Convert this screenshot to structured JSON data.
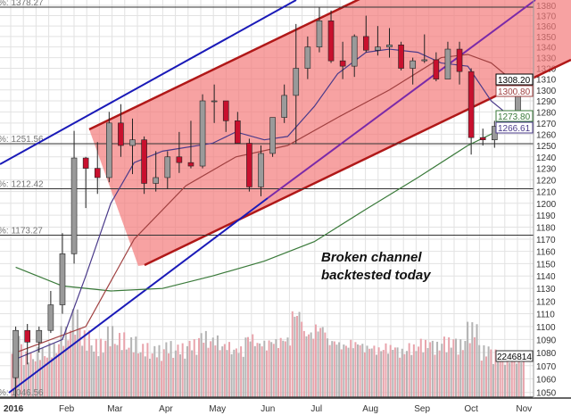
{
  "chart_data": {
    "type": "candlestick",
    "y_scale": "log",
    "ylim": [
      1046,
      1382
    ],
    "grid": true,
    "y_ticks": [
      1050,
      1060,
      1070,
      1080,
      1090,
      1100,
      1110,
      1120,
      1130,
      1140,
      1150,
      1160,
      1170,
      1180,
      1190,
      1200,
      1210,
      1220,
      1230,
      1240,
      1250,
      1260,
      1270,
      1280,
      1290,
      1300,
      1310,
      1320,
      1330,
      1340,
      1350,
      1360,
      1370,
      1380
    ],
    "x_ticks": [
      {
        "date": "2016-01-01",
        "label": "2016"
      },
      {
        "date": "2016-02-01",
        "label": "Feb"
      },
      {
        "date": "2016-03-01",
        "label": "Mar"
      },
      {
        "date": "2016-04-01",
        "label": "Apr"
      },
      {
        "date": "2016-05-01",
        "label": "May"
      },
      {
        "date": "2016-06-01",
        "label": "Jun"
      },
      {
        "date": "2016-07-01",
        "label": "Jul"
      },
      {
        "date": "2016-08-01",
        "label": "Aug"
      },
      {
        "date": "2016-09-01",
        "label": "Sep"
      },
      {
        "date": "2016-10-01",
        "label": "Oct"
      },
      {
        "date": "2016-11-01",
        "label": "Nov"
      }
    ],
    "colors": {
      "down": "#c8102e",
      "up": "#9a9a9a",
      "vol_down": "#e8a4ac",
      "vol_up": "#b4b4b4",
      "channel_fill": "#f47a7a",
      "channel_line": "#b01818",
      "trend": "#1a1ab8",
      "trend2": "#7a2aa8",
      "ma_200": "#3a7a3a",
      "ma_50": "#4a3a8a",
      "ma_100": "#a04040"
    },
    "ohlc": [
      [
        "2016-01-04",
        1061,
        1100,
        1046,
        1097
      ],
      [
        "2016-01-11",
        1097,
        1102,
        1071,
        1088
      ],
      [
        "2016-01-18",
        1088,
        1100,
        1080,
        1097
      ],
      [
        "2016-01-25",
        1097,
        1128,
        1095,
        1117
      ],
      [
        "2016-02-01",
        1117,
        1175,
        1110,
        1158
      ],
      [
        "2016-02-08",
        1158,
        1263,
        1150,
        1239
      ],
      [
        "2016-02-15",
        1239,
        1240,
        1196,
        1230
      ],
      [
        "2016-02-22",
        1230,
        1253,
        1208,
        1222
      ],
      [
        "2016-02-29",
        1222,
        1280,
        1218,
        1270
      ],
      [
        "2016-03-07",
        1270,
        1287,
        1240,
        1250
      ],
      [
        "2016-03-14",
        1250,
        1274,
        1225,
        1255
      ],
      [
        "2016-03-21",
        1255,
        1258,
        1208,
        1217
      ],
      [
        "2016-03-28",
        1217,
        1245,
        1210,
        1222
      ],
      [
        "2016-04-04",
        1222,
        1245,
        1212,
        1240
      ],
      [
        "2016-04-11",
        1240,
        1262,
        1226,
        1235
      ],
      [
        "2016-04-18",
        1235,
        1272,
        1230,
        1232
      ],
      [
        "2016-04-25",
        1232,
        1296,
        1230,
        1290
      ],
      [
        "2016-05-02",
        1290,
        1305,
        1270,
        1290
      ],
      [
        "2016-05-09",
        1290,
        1290,
        1262,
        1272
      ],
      [
        "2016-05-16",
        1272,
        1280,
        1252,
        1252
      ],
      [
        "2016-05-23",
        1252,
        1256,
        1210,
        1214
      ],
      [
        "2016-05-30",
        1214,
        1250,
        1206,
        1243
      ],
      [
        "2016-06-06",
        1243,
        1275,
        1240,
        1275
      ],
      [
        "2016-06-13",
        1275,
        1305,
        1270,
        1295
      ],
      [
        "2016-06-20",
        1295,
        1362,
        1252,
        1320
      ],
      [
        "2016-06-27",
        1320,
        1350,
        1310,
        1340
      ],
      [
        "2016-07-04",
        1340,
        1378,
        1335,
        1365
      ],
      [
        "2016-07-11",
        1365,
        1375,
        1325,
        1327
      ],
      [
        "2016-07-18",
        1327,
        1345,
        1310,
        1322
      ],
      [
        "2016-07-25",
        1322,
        1352,
        1312,
        1350
      ],
      [
        "2016-08-01",
        1350,
        1370,
        1335,
        1337
      ],
      [
        "2016-08-08",
        1337,
        1360,
        1332,
        1340
      ],
      [
        "2016-08-15",
        1340,
        1358,
        1330,
        1342
      ],
      [
        "2016-08-22",
        1342,
        1345,
        1318,
        1320
      ],
      [
        "2016-08-29",
        1320,
        1330,
        1305,
        1327
      ],
      [
        "2016-09-05",
        1327,
        1352,
        1325,
        1328
      ],
      [
        "2016-09-12",
        1328,
        1335,
        1308,
        1310
      ],
      [
        "2016-09-19",
        1310,
        1345,
        1310,
        1338
      ],
      [
        "2016-09-26",
        1338,
        1345,
        1305,
        1317
      ],
      [
        "2016-10-03",
        1317,
        1320,
        1242,
        1257
      ],
      [
        "2016-10-10",
        1257,
        1265,
        1250,
        1255
      ],
      [
        "2016-10-17",
        1255,
        1272,
        1248,
        1267
      ],
      [
        "2016-10-24",
        1267,
        1280,
        1262,
        1275
      ],
      [
        "2016-10-31",
        1275,
        1310,
        1265,
        1308.2
      ]
    ],
    "volume": [
      3.0,
      2.2,
      2.4,
      2.6,
      3.4,
      4.2,
      3.2,
      2.8,
      3.4,
      3.1,
      2.9,
      2.6,
      2.5,
      2.7,
      2.6,
      2.8,
      3.2,
      3.0,
      2.7,
      2.5,
      3.1,
      2.8,
      2.9,
      3.0,
      4.3,
      3.3,
      3.6,
      2.9,
      2.7,
      2.8,
      2.6,
      2.5,
      2.6,
      2.4,
      2.6,
      2.8,
      2.7,
      2.9,
      2.8,
      3.6,
      2.5,
      2.3,
      2.2,
      2.246814
    ],
    "moving_averages": {
      "ma_200": [
        [
          "2016-01-04",
          1147
        ],
        [
          "2016-02-01",
          1132
        ],
        [
          "2016-03-01",
          1128
        ],
        [
          "2016-04-01",
          1130
        ],
        [
          "2016-05-01",
          1140
        ],
        [
          "2016-06-01",
          1152
        ],
        [
          "2016-07-01",
          1168
        ],
        [
          "2016-08-01",
          1195
        ],
        [
          "2016-09-01",
          1222
        ],
        [
          "2016-10-01",
          1250
        ],
        [
          "2016-11-03",
          1273.8
        ]
      ],
      "ma_50": [
        [
          "2016-01-04",
          1075
        ],
        [
          "2016-02-01",
          1090
        ],
        [
          "2016-02-15",
          1140
        ],
        [
          "2016-03-01",
          1200
        ],
        [
          "2016-03-15",
          1235
        ],
        [
          "2016-04-01",
          1245
        ],
        [
          "2016-05-01",
          1252
        ],
        [
          "2016-05-15",
          1262
        ],
        [
          "2016-06-01",
          1255
        ],
        [
          "2016-06-15",
          1258
        ],
        [
          "2016-07-01",
          1285
        ],
        [
          "2016-07-15",
          1315
        ],
        [
          "2016-08-01",
          1335
        ],
        [
          "2016-08-15",
          1338
        ],
        [
          "2016-09-01",
          1335
        ],
        [
          "2016-09-15",
          1325
        ],
        [
          "2016-10-01",
          1322
        ],
        [
          "2016-10-15",
          1290
        ],
        [
          "2016-11-03",
          1266.61
        ]
      ],
      "ma_100": [
        [
          "2016-01-04",
          1080
        ],
        [
          "2016-02-15",
          1100
        ],
        [
          "2016-03-15",
          1170
        ],
        [
          "2016-04-15",
          1215
        ],
        [
          "2016-05-15",
          1240
        ],
        [
          "2016-06-15",
          1250
        ],
        [
          "2016-07-15",
          1275
        ],
        [
          "2016-08-15",
          1300
        ],
        [
          "2016-09-15",
          1330
        ],
        [
          "2016-10-01",
          1333
        ],
        [
          "2016-10-15",
          1325
        ],
        [
          "2016-11-03",
          1300.8
        ]
      ]
    },
    "fib_levels": [
      {
        "value": 1378.27,
        "label": "%: 1378.27"
      },
      {
        "value": 1251.56,
        "label": "%: 1251.56"
      },
      {
        "value": 1212.42,
        "label": "%: 1212.42"
      },
      {
        "value": 1173.27,
        "label": "%: 1173.27"
      },
      {
        "value": 1046.56,
        "label": "%: 1046.56"
      }
    ],
    "price_tags": [
      {
        "value": 1308.2,
        "label": "1308.20",
        "color": "#000"
      },
      {
        "value": 1300.8,
        "label": "1300.80",
        "color": "#a04040"
      },
      {
        "value": 1273.8,
        "label": "1273.80",
        "color": "#3a7a3a"
      },
      {
        "value": 1266.61,
        "label": "1266.61",
        "color": "#4a3a8a"
      }
    ],
    "volume_tag": "2246814",
    "annotations": [
      "Broken channel",
      "backtested today"
    ]
  }
}
